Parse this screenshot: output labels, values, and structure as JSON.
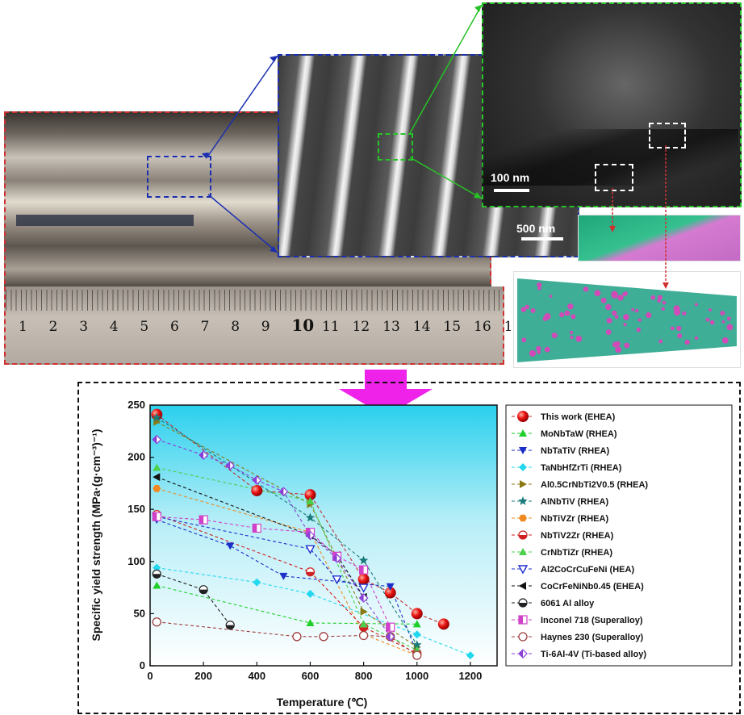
{
  "figure": {
    "sem_scale": "500 nm",
    "tem_scale": "100 nm",
    "ruler_numbers": [
      "1",
      "2",
      "3",
      "4",
      "5",
      "6",
      "7",
      "8",
      "9",
      "10",
      "11",
      "12",
      "13",
      "14",
      "15",
      "16",
      "1"
    ]
  },
  "chart_data": {
    "type": "line",
    "xlabel": "Temperature (℃)",
    "ylabel": "Specific yield strength (MPa·(g·cm⁻³)⁻¹)",
    "xlim": [
      0,
      1300
    ],
    "ylim": [
      0,
      250
    ],
    "xticks": [
      0,
      200,
      400,
      600,
      800,
      1000,
      1200
    ],
    "yticks": [
      0,
      50,
      100,
      150,
      200,
      250
    ],
    "xtick_labels": [
      "0",
      "200",
      "400",
      "600",
      "800",
      "1000",
      "1200"
    ],
    "ytick_labels": [
      "0",
      "50",
      "100",
      "150",
      "200",
      "250"
    ],
    "background": "gradient cyan-to-white",
    "legend_position": "right",
    "series": [
      {
        "name": "This work (EHEA)",
        "color": "#e81010",
        "marker": "sphere",
        "line": "#c23030",
        "points": [
          [
            25,
            241
          ],
          [
            400,
            168
          ],
          [
            600,
            164
          ],
          [
            800,
            83
          ],
          [
            900,
            70
          ],
          [
            1000,
            50
          ],
          [
            1100,
            40
          ]
        ]
      },
      {
        "name": "MoNbTaW (RHEA)",
        "color": "#1fcf2a",
        "marker": "triangle-up",
        "line": "#1fcf2a",
        "points": [
          [
            25,
            77
          ],
          [
            600,
            41
          ],
          [
            1000,
            40
          ]
        ]
      },
      {
        "name": "NbTaTiV (RHEA)",
        "color": "#1a2ec8",
        "marker": "triangle-down",
        "line": "#1a2ec8",
        "points": [
          [
            25,
            140
          ],
          [
            300,
            115
          ],
          [
            500,
            86
          ],
          [
            900,
            76
          ],
          [
            1000,
            12
          ]
        ]
      },
      {
        "name": "TaNbHfZrTi (RHEA)",
        "color": "#22d8ee",
        "marker": "diamond",
        "line": "#22d8ee",
        "points": [
          [
            25,
            94
          ],
          [
            400,
            80
          ],
          [
            600,
            69
          ],
          [
            1000,
            30
          ],
          [
            1200,
            10
          ]
        ]
      },
      {
        "name": "Al0.5CrNbTi2V0.5 (RHEA)",
        "color": "#8a7a16",
        "marker": "triangle-right",
        "line": "#8a7a16",
        "points": [
          [
            25,
            234
          ],
          [
            600,
            155
          ],
          [
            800,
            52
          ],
          [
            1000,
            18
          ]
        ]
      },
      {
        "name": "AlNbTiV (RHEA)",
        "color": "#1a7a7a",
        "marker": "star",
        "line": "#1a7a7a",
        "points": [
          [
            25,
            238
          ],
          [
            600,
            142
          ],
          [
            800,
            101
          ],
          [
            1000,
            20
          ]
        ]
      },
      {
        "name": "NbTiVZr (RHEA)",
        "color": "#f08a20",
        "marker": "hexagon",
        "line": "#f08a20",
        "points": [
          [
            25,
            170
          ],
          [
            600,
            128
          ],
          [
            800,
            30
          ],
          [
            1000,
            10
          ]
        ]
      },
      {
        "name": "NbTiV2Zr (RHEA)",
        "color": "#d02020",
        "marker": "half-circle",
        "line": "#d02020",
        "points": [
          [
            25,
            145
          ],
          [
            600,
            90
          ],
          [
            800,
            37
          ],
          [
            1000,
            12
          ]
        ]
      },
      {
        "name": "CrNbTiZr (RHEA)",
        "color": "#4ad04a",
        "marker": "triangle-up",
        "line": "#4ad04a",
        "points": [
          [
            25,
            190
          ],
          [
            600,
            158
          ],
          [
            800,
            40
          ],
          [
            1000,
            15
          ]
        ]
      },
      {
        "name": "Al2CoCrCuFeNi (HEA)",
        "color": "#2030d0",
        "marker": "triangle-down-open",
        "line": "#2030d0",
        "points": [
          [
            25,
            143
          ],
          [
            600,
            112
          ],
          [
            700,
            83
          ],
          [
            800,
            75
          ]
        ]
      },
      {
        "name": "CoCrFeNiNb0.45 (EHEA)",
        "color": "#111111",
        "marker": "triangle-left",
        "line": "#111111",
        "points": [
          [
            25,
            181
          ],
          [
            600,
            125
          ],
          [
            700,
            106
          ],
          [
            800,
            66
          ]
        ]
      },
      {
        "name": "6061 Al alloy",
        "color": "#222222",
        "marker": "half-circle",
        "line": "#222222",
        "points": [
          [
            25,
            88
          ],
          [
            200,
            73
          ],
          [
            300,
            39
          ]
        ]
      },
      {
        "name": "Inconel 718 (Superalloy)",
        "color": "#d040c8",
        "marker": "square-half",
        "line": "#d040c8",
        "points": [
          [
            25,
            143
          ],
          [
            200,
            140
          ],
          [
            400,
            132
          ],
          [
            600,
            128
          ],
          [
            700,
            105
          ],
          [
            800,
            92
          ],
          [
            900,
            37
          ]
        ]
      },
      {
        "name": "Haynes 230 (Superalloy)",
        "color": "#a04040",
        "marker": "circle-open",
        "line": "#a04040",
        "points": [
          [
            25,
            42
          ],
          [
            550,
            28
          ],
          [
            650,
            28
          ],
          [
            800,
            29
          ],
          [
            900,
            28
          ],
          [
            1000,
            10
          ]
        ]
      },
      {
        "name": "Ti-6Al-4V (Ti-based alloy)",
        "color": "#8a40d8",
        "marker": "half-diamond",
        "line": "#8a40d8",
        "points": [
          [
            25,
            217
          ],
          [
            200,
            202
          ],
          [
            300,
            192
          ],
          [
            400,
            178
          ],
          [
            500,
            167
          ],
          [
            600,
            125
          ],
          [
            700,
            103
          ],
          [
            800,
            65
          ],
          [
            900,
            28
          ]
        ]
      }
    ]
  }
}
